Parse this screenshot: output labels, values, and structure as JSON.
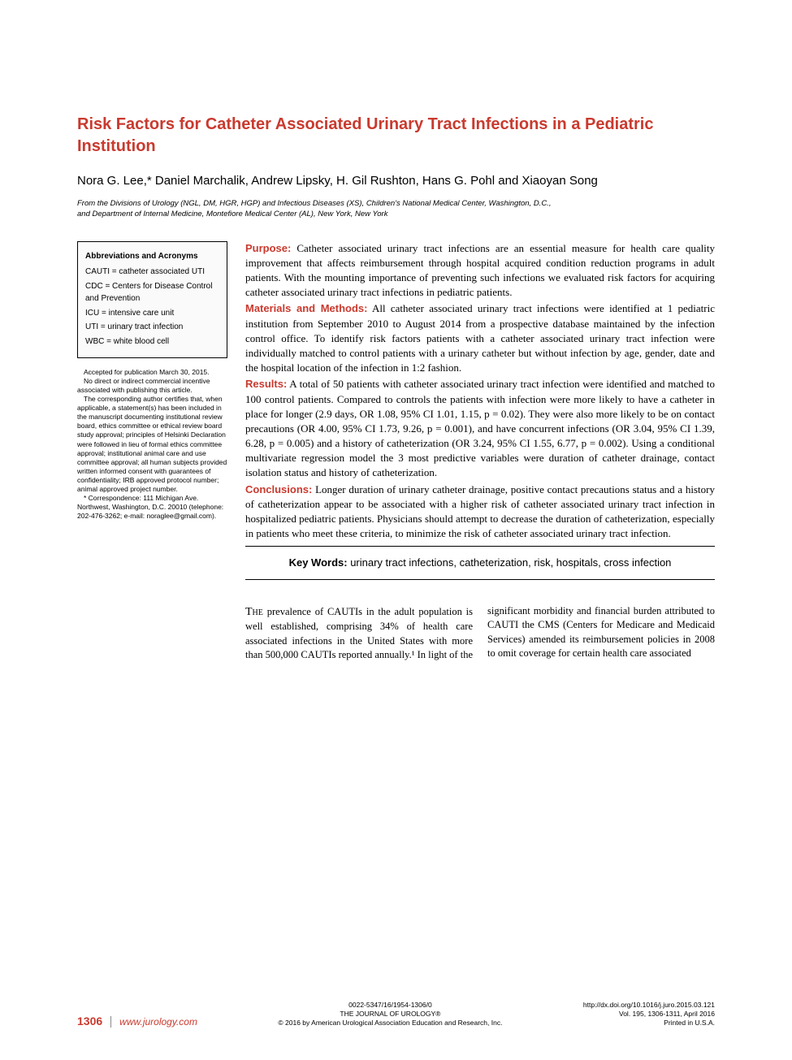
{
  "title": "Risk Factors for Catheter Associated Urinary Tract Infections in a Pediatric Institution",
  "authors": "Nora G. Lee,* Daniel Marchalik, Andrew Lipsky, H. Gil Rushton, Hans G. Pohl and Xiaoyan Song",
  "affiliation": "From the Divisions of Urology (NGL, DM, HGR, HGP) and Infectious Diseases (XS), Children's National Medical Center, Washington, D.C., and Department of Internal Medicine, Montefiore Medical Center (AL), New York, New York",
  "abbreviations": {
    "heading": "Abbreviations and Acronyms",
    "items": [
      "CAUTI = catheter associated UTI",
      "CDC = Centers for Disease Control and Prevention",
      "ICU = intensive care unit",
      "UTI = urinary tract infection",
      "WBC = white blood cell"
    ]
  },
  "sidebar_notes": [
    "Accepted for publication March 30, 2015.",
    "No direct or indirect commercial incentive associated with publishing this article.",
    "The corresponding author certifies that, when applicable, a statement(s) has been included in the manuscript documenting institutional review board, ethics committee or ethical review board study approval; principles of Helsinki Declaration were followed in lieu of formal ethics committee approval; institutional animal care and use committee approval; all human subjects provided written informed consent with guarantees of confidentiality; IRB approved protocol number; animal approved project number.",
    "* Correspondence: 111 Michigan Ave. Northwest, Washington, D.C. 20010 (telephone: 202-476-3262; e-mail: noraglee@gmail.com)."
  ],
  "abstract": {
    "purpose": {
      "label": "Purpose:",
      "text": " Catheter associated urinary tract infections are an essential measure for health care quality improvement that affects reimbursement through hospital acquired condition reduction programs in adult patients. With the mounting importance of preventing such infections we evaluated risk factors for acquiring catheter associated urinary tract infections in pediatric patients."
    },
    "methods": {
      "label": "Materials and Methods:",
      "text": " All catheter associated urinary tract infections were identified at 1 pediatric institution from September 2010 to August 2014 from a prospective database maintained by the infection control office. To identify risk factors patients with a catheter associated urinary tract infection were individually matched to control patients with a urinary catheter but without infection by age, gender, date and the hospital location of the infection in 1:2 fashion."
    },
    "results": {
      "label": "Results:",
      "text": " A total of 50 patients with catheter associated urinary tract infection were identified and matched to 100 control patients. Compared to controls the patients with infection were more likely to have a catheter in place for longer (2.9 days, OR 1.08, 95% CI 1.01, 1.15, p = 0.02). They were also more likely to be on contact precautions (OR 4.00, 95% CI 1.73, 9.26, p = 0.001), and have concurrent infections (OR 3.04, 95% CI 1.39, 6.28, p = 0.005) and a history of catheterization (OR 3.24, 95% CI 1.55, 6.77, p = 0.002). Using a conditional multivariate regression model the 3 most predictive variables were duration of catheter drainage, contact isolation status and history of catheterization."
    },
    "conclusions": {
      "label": "Conclusions:",
      "text": " Longer duration of urinary catheter drainage, positive contact precautions status and a history of catheterization appear to be associated with a higher risk of catheter associated urinary tract infection in hospitalized pediatric patients. Physicians should attempt to decrease the duration of catheterization, especially in patients who meet these criteria, to minimize the risk of catheter associated urinary tract infection."
    }
  },
  "keywords": {
    "label": "Key Words:",
    "text": " urinary tract infections, catheterization, risk, hospitals, cross infection"
  },
  "body": {
    "first_word": "The",
    "text": " prevalence of CAUTIs in the adult population is well established, comprising 34% of health care associated infections in the United States with more than 500,000 CAUTIs reported annually.¹ In light of the significant morbidity and financial burden attributed to CAUTI the CMS (Centers for Medicare and Medicaid Services) amended its reimbursement policies in 2008 to omit coverage for certain health care associated"
  },
  "footer": {
    "page_number": "1306",
    "url": "www.jurology.com",
    "center": {
      "line1": "0022-5347/16/1954-1306/0",
      "line2": "THE JOURNAL OF UROLOGY®",
      "line3": "© 2016 by American Urological Association Education and Research, Inc."
    },
    "right": {
      "line1": "http://dx.doi.org/10.1016/j.juro.2015.03.121",
      "line2": "Vol. 195, 1306-1311, April 2016",
      "line3": "Printed in U.S.A."
    }
  },
  "colors": {
    "accent": "#c93a2e",
    "text": "#000000",
    "background": "#ffffff"
  }
}
